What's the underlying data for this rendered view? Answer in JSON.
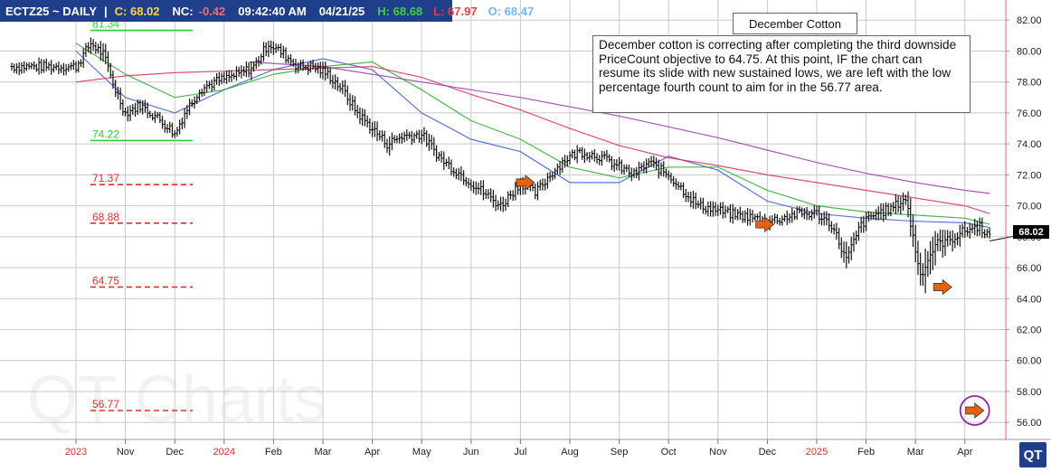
{
  "header": {
    "symbol": "ECTZ25 ~ DAILY",
    "sep": "|",
    "close_label": "C: 68.02",
    "net_change_label": "NC:",
    "net_change_value": "-0.42",
    "time": "09:42:40 AM",
    "date": "04/21/25",
    "high_label": "H: 68.68",
    "low_label": "L: 67.97",
    "open_label": "O: 68.47"
  },
  "colors": {
    "header_bg": "#1f3f8a",
    "close": "#ffd54a",
    "net_change": "#ff6b6b",
    "high": "#3ecf3e",
    "low": "#e04040",
    "open": "#6fb8ff",
    "upper_level": "#2ecc2e",
    "lower_level": "#d93030",
    "arrow": "#e8620c",
    "ma_short": "#3b5bd6",
    "ma_mid": "#2eaa2e",
    "ma_long": "#d6305a",
    "ma_longest": "#9a3aa8",
    "year_tick": "#d93030"
  },
  "title_box": "December Cotton",
  "commentary": "December cotton is correcting after completing the third downside PriceCount objective to 64.75.  At this point, IF the chart can resume its slide with new sustained lows, we are left with the low percentage fourth count to aim for in the 56.77 area.",
  "watermark": "QT Charts",
  "logo_badge": "QT",
  "last_price": "68.02",
  "chart_data": {
    "type": "ohlc",
    "title": "December Cotton",
    "y_ticks": [
      "82.00",
      "80.00",
      "78.00",
      "76.00",
      "74.00",
      "72.00",
      "70.00",
      "68.00",
      "66.00",
      "64.00",
      "62.00",
      "60.00",
      "58.00",
      "56.00"
    ],
    "ylim": [
      54.9,
      83.3
    ],
    "x_tick_labels": [
      "2023",
      "Nov",
      "Dec",
      "2024",
      "Feb",
      "Mar",
      "Apr",
      "May",
      "Jun",
      "Jul",
      "Aug",
      "Sep",
      "Oct",
      "Nov",
      "Dec",
      "2025",
      "Feb",
      "Mar",
      "Apr"
    ],
    "x_tick_is_year": [
      true,
      false,
      false,
      true,
      false,
      false,
      false,
      false,
      false,
      false,
      false,
      false,
      false,
      false,
      false,
      true,
      false,
      false,
      false
    ],
    "x_range": [
      "2023-Oct",
      "2025-Apr"
    ],
    "levels": [
      {
        "label": "81.34",
        "value": 81.34,
        "style": "solid",
        "color_key": "upper_level"
      },
      {
        "label": "74.22",
        "value": 74.22,
        "style": "solid",
        "color_key": "upper_level"
      },
      {
        "label": "71.37",
        "value": 71.37,
        "style": "dashed",
        "color_key": "lower_level"
      },
      {
        "label": "68.88",
        "value": 68.88,
        "style": "dashed",
        "color_key": "lower_level"
      },
      {
        "label": "64.75",
        "value": 64.75,
        "style": "dashed",
        "color_key": "lower_level"
      },
      {
        "label": "56.77",
        "value": 56.77,
        "style": "dashed",
        "color_key": "lower_level"
      }
    ],
    "price_path": {
      "month_index": [
        0,
        0.3,
        0.55,
        0.8,
        1.0,
        1.3,
        1.6,
        1.9,
        2.0,
        2.2,
        2.5,
        2.8,
        3.0,
        3.3,
        3.6,
        3.9,
        4.2,
        4.5,
        4.8,
        5.1,
        5.4,
        5.7,
        6.0,
        6.3,
        6.6,
        7.0,
        7.4,
        7.8,
        8.2,
        8.6,
        9.0,
        9.3,
        9.6,
        9.9,
        10.2,
        10.6,
        11.0,
        11.3,
        11.6,
        12.0,
        12.3,
        12.6,
        12.9,
        13.2,
        13.6,
        14.0,
        14.3,
        14.6,
        15.0,
        15.3,
        15.6,
        15.9,
        16.2,
        16.5,
        16.8,
        17.1,
        17.4,
        17.7,
        18.0,
        18.3,
        18.5
      ],
      "close": [
        79.0,
        80.5,
        79.8,
        77.5,
        76.0,
        76.5,
        75.8,
        75.0,
        74.6,
        76.0,
        77.5,
        78.0,
        78.2,
        78.5,
        79.0,
        80.5,
        79.8,
        79.0,
        79.0,
        78.5,
        77.5,
        76.0,
        75.0,
        74.0,
        74.5,
        74.6,
        73.0,
        72.0,
        71.0,
        70.0,
        71.5,
        70.8,
        72.0,
        73.0,
        73.5,
        73.2,
        72.5,
        72.0,
        72.8,
        72.0,
        71.0,
        70.0,
        69.8,
        69.5,
        69.3,
        69.0,
        69.2,
        69.5,
        69.5,
        68.8,
        66.5,
        68.8,
        69.5,
        69.8,
        70.5,
        65.5,
        67.5,
        67.8,
        68.4,
        68.7,
        68.02
      ],
      "range": [
        0.6,
        0.8,
        0.9,
        0.8,
        0.7,
        0.7,
        0.6,
        0.9,
        0.8,
        0.7,
        0.6,
        0.6,
        0.6,
        0.7,
        0.8,
        0.8,
        0.7,
        0.7,
        0.7,
        0.8,
        0.8,
        0.9,
        0.9,
        0.9,
        0.8,
        0.8,
        0.8,
        0.8,
        0.9,
        0.9,
        0.8,
        0.7,
        0.7,
        0.7,
        0.7,
        0.7,
        0.7,
        0.7,
        0.7,
        0.8,
        0.8,
        0.8,
        0.7,
        0.7,
        0.7,
        0.7,
        0.7,
        0.7,
        0.7,
        0.8,
        1.5,
        0.9,
        0.8,
        0.8,
        1.2,
        2.5,
        1.6,
        1.2,
        1.0,
        0.8,
        0.7
      ]
    },
    "moving_averages": [
      {
        "color_key": "ma_short",
        "month_index": [
          0,
          1,
          2,
          3,
          4,
          5,
          6,
          7,
          8,
          9,
          10,
          11,
          12,
          13,
          14,
          15,
          16,
          17,
          18,
          18.5
        ],
        "values": [
          80.0,
          77.0,
          76.0,
          77.5,
          78.8,
          79.5,
          78.8,
          76.0,
          74.3,
          73.5,
          71.5,
          71.5,
          73.2,
          72.3,
          70.3,
          69.5,
          69.2,
          69.0,
          68.9,
          68.6
        ]
      },
      {
        "color_key": "ma_mid",
        "month_index": [
          0,
          1,
          2,
          3,
          4,
          5,
          6,
          7,
          8,
          9,
          10,
          11,
          12,
          13,
          14,
          15,
          16,
          17,
          18,
          18.5
        ],
        "values": [
          80.5,
          78.5,
          77.0,
          77.5,
          78.5,
          79.0,
          79.3,
          77.5,
          75.5,
          74.3,
          72.5,
          71.8,
          72.5,
          72.5,
          71.0,
          70.0,
          69.6,
          69.4,
          69.2,
          68.8
        ]
      },
      {
        "color_key": "ma_long",
        "month_index": [
          0,
          1,
          2,
          3,
          4,
          5,
          6,
          7,
          8,
          9,
          10,
          11,
          12,
          13,
          14,
          15,
          16,
          17,
          18,
          18.5
        ],
        "values": [
          78.0,
          78.4,
          78.6,
          78.7,
          78.8,
          78.9,
          79.0,
          78.3,
          77.2,
          76.2,
          75.0,
          73.9,
          73.1,
          72.6,
          72.0,
          71.5,
          71.0,
          70.5,
          70.0,
          69.5
        ]
      },
      {
        "color_key": "ma_longest",
        "month_index": [
          3.5,
          5,
          6,
          7,
          8,
          9,
          10,
          11,
          12,
          13,
          14,
          15,
          16,
          17,
          18,
          18.5
        ],
        "values": [
          79.3,
          79.0,
          78.5,
          78.0,
          77.5,
          77.0,
          76.4,
          75.8,
          75.1,
          74.4,
          73.6,
          72.8,
          72.1,
          71.5,
          71.0,
          70.8
        ]
      }
    ],
    "arrows": [
      {
        "month_index": 9.1,
        "y": 71.5
      },
      {
        "month_index": 13.95,
        "y": 68.8
      },
      {
        "month_index": 17.55,
        "y": 64.75
      },
      {
        "month_index": 18.2,
        "y": 56.77,
        "circled": true
      }
    ]
  }
}
